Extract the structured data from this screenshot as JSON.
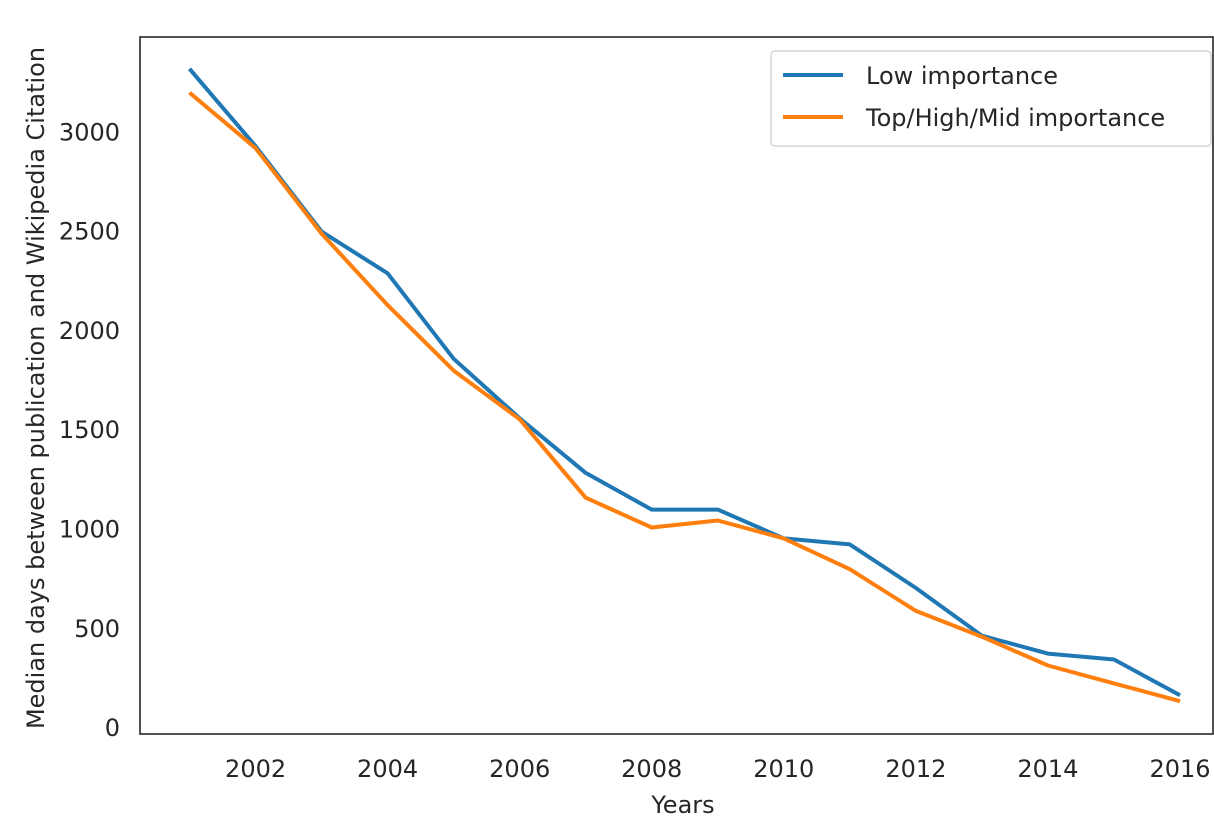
{
  "chart_data": {
    "type": "line",
    "title": "",
    "xlabel": "Years",
    "ylabel": "Median days between publication and Wikipedia Citation",
    "xlim": [
      2000.25,
      2016.5
    ],
    "ylim": [
      -30,
      3480
    ],
    "xticks": [
      2002,
      2004,
      2006,
      2008,
      2010,
      2012,
      2014,
      2016
    ],
    "yticks": [
      0,
      500,
      1000,
      1500,
      2000,
      2500,
      3000
    ],
    "x": [
      2001,
      2002,
      2003,
      2004,
      2005,
      2006,
      2007,
      2008,
      2009,
      2010,
      2011,
      2012,
      2013,
      2014,
      2015,
      2016
    ],
    "grid": false,
    "legend_position": "top-right",
    "series": [
      {
        "name": "Low importance",
        "color": "#1f77b4",
        "values": [
          3320,
          2930,
          2500,
          2290,
          1860,
          1560,
          1285,
          1100,
          1100,
          955,
          925,
          705,
          465,
          375,
          345,
          165
        ]
      },
      {
        "name": "Top/High/Mid importance",
        "color": "#ff7f0e",
        "values": [
          3200,
          2920,
          2490,
          2130,
          1800,
          1555,
          1160,
          1010,
          1045,
          955,
          800,
          590,
          460,
          315,
          225,
          135
        ]
      }
    ]
  }
}
